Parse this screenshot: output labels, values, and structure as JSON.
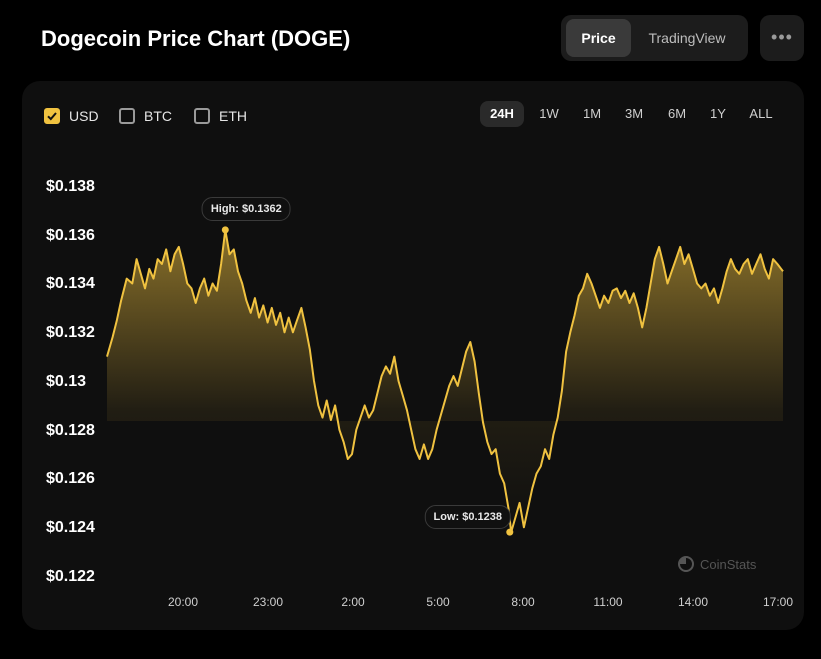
{
  "header": {
    "title": "Dogecoin Price Chart (DOGE)",
    "view_tabs": [
      {
        "label": "Price",
        "active": true
      },
      {
        "label": "TradingView",
        "active": false
      }
    ],
    "more_label": "•••"
  },
  "currencies": [
    {
      "label": "USD",
      "checked": true
    },
    {
      "label": "BTC",
      "checked": false
    },
    {
      "label": "ETH",
      "checked": false
    }
  ],
  "ranges": [
    {
      "label": "24H",
      "active": true
    },
    {
      "label": "1W",
      "active": false
    },
    {
      "label": "1M",
      "active": false
    },
    {
      "label": "3M",
      "active": false
    },
    {
      "label": "6M",
      "active": false
    },
    {
      "label": "1Y",
      "active": false
    },
    {
      "label": "ALL",
      "active": false
    }
  ],
  "watermark": "CoinStats",
  "colors": {
    "accent": "#f0c240",
    "background": "#000000",
    "card": "#0f0f0f"
  },
  "chart_data": {
    "type": "area",
    "title": "Dogecoin Price Chart (DOGE)",
    "currency": "USD",
    "ylim": [
      0.122,
      0.138
    ],
    "y_ticks": [
      "$0.138",
      "$0.136",
      "$0.134",
      "$0.132",
      "$0.13",
      "$0.128",
      "$0.126",
      "$0.124",
      "$0.122"
    ],
    "y_tick_values": [
      0.138,
      0.136,
      0.134,
      0.132,
      0.13,
      0.128,
      0.126,
      0.124,
      0.122
    ],
    "x_ticks": [
      "20:00",
      "23:00",
      "2:00",
      "5:00",
      "8:00",
      "11:00",
      "14:00",
      "17:00"
    ],
    "x_tick_hours": [
      3,
      6,
      9,
      12,
      15,
      18,
      21,
      24
    ],
    "xlim_hours": [
      0,
      24
    ],
    "high": {
      "label": "High: $0.1362",
      "value": 0.1362,
      "hour": 4.2
    },
    "low": {
      "label": "Low: $0.1238",
      "value": 0.1238,
      "hour": 14.3
    },
    "series": [
      {
        "name": "DOGE/USD",
        "points": [
          [
            0,
            0.131
          ],
          [
            0.2,
            0.1318
          ],
          [
            0.35,
            0.1325
          ],
          [
            0.5,
            0.1333
          ],
          [
            0.7,
            0.1342
          ],
          [
            0.9,
            0.134
          ],
          [
            1.05,
            0.135
          ],
          [
            1.2,
            0.1344
          ],
          [
            1.35,
            0.1338
          ],
          [
            1.5,
            0.1346
          ],
          [
            1.65,
            0.1342
          ],
          [
            1.8,
            0.135
          ],
          [
            1.95,
            0.1348
          ],
          [
            2.1,
            0.1354
          ],
          [
            2.25,
            0.1345
          ],
          [
            2.4,
            0.1352
          ],
          [
            2.55,
            0.1355
          ],
          [
            2.7,
            0.1348
          ],
          [
            2.85,
            0.134
          ],
          [
            3.0,
            0.1338
          ],
          [
            3.15,
            0.1332
          ],
          [
            3.3,
            0.1338
          ],
          [
            3.45,
            0.1342
          ],
          [
            3.6,
            0.1335
          ],
          [
            3.75,
            0.134
          ],
          [
            3.9,
            0.1337
          ],
          [
            4.05,
            0.1348
          ],
          [
            4.2,
            0.1362
          ],
          [
            4.35,
            0.1352
          ],
          [
            4.5,
            0.1354
          ],
          [
            4.65,
            0.1345
          ],
          [
            4.8,
            0.134
          ],
          [
            4.95,
            0.1333
          ],
          [
            5.1,
            0.1328
          ],
          [
            5.25,
            0.1334
          ],
          [
            5.4,
            0.1326
          ],
          [
            5.55,
            0.1331
          ],
          [
            5.7,
            0.1324
          ],
          [
            5.85,
            0.133
          ],
          [
            6.0,
            0.1323
          ],
          [
            6.15,
            0.1328
          ],
          [
            6.3,
            0.132
          ],
          [
            6.45,
            0.1326
          ],
          [
            6.6,
            0.132
          ],
          [
            6.75,
            0.1325
          ],
          [
            6.9,
            0.133
          ],
          [
            7.05,
            0.1322
          ],
          [
            7.2,
            0.1313
          ],
          [
            7.35,
            0.13
          ],
          [
            7.5,
            0.129
          ],
          [
            7.65,
            0.1285
          ],
          [
            7.8,
            0.1292
          ],
          [
            7.95,
            0.1284
          ],
          [
            8.1,
            0.129
          ],
          [
            8.25,
            0.128
          ],
          [
            8.4,
            0.1275
          ],
          [
            8.55,
            0.1268
          ],
          [
            8.7,
            0.127
          ],
          [
            8.85,
            0.128
          ],
          [
            9.0,
            0.1285
          ],
          [
            9.15,
            0.129
          ],
          [
            9.3,
            0.1285
          ],
          [
            9.45,
            0.1288
          ],
          [
            9.6,
            0.1295
          ],
          [
            9.75,
            0.1302
          ],
          [
            9.9,
            0.1306
          ],
          [
            10.05,
            0.1303
          ],
          [
            10.2,
            0.131
          ],
          [
            10.35,
            0.13
          ],
          [
            10.5,
            0.1294
          ],
          [
            10.65,
            0.1288
          ],
          [
            10.8,
            0.128
          ],
          [
            10.95,
            0.1272
          ],
          [
            11.1,
            0.1268
          ],
          [
            11.25,
            0.1274
          ],
          [
            11.4,
            0.1268
          ],
          [
            11.55,
            0.1272
          ],
          [
            11.7,
            0.128
          ],
          [
            11.85,
            0.1286
          ],
          [
            12.0,
            0.1292
          ],
          [
            12.15,
            0.1298
          ],
          [
            12.3,
            0.1302
          ],
          [
            12.45,
            0.1298
          ],
          [
            12.6,
            0.1305
          ],
          [
            12.75,
            0.1312
          ],
          [
            12.9,
            0.1316
          ],
          [
            13.05,
            0.1308
          ],
          [
            13.2,
            0.1295
          ],
          [
            13.35,
            0.1283
          ],
          [
            13.5,
            0.1275
          ],
          [
            13.65,
            0.127
          ],
          [
            13.8,
            0.1272
          ],
          [
            13.95,
            0.1262
          ],
          [
            14.1,
            0.1258
          ],
          [
            14.25,
            0.1248
          ],
          [
            14.35,
            0.1238
          ],
          [
            14.5,
            0.1244
          ],
          [
            14.65,
            0.125
          ],
          [
            14.8,
            0.124
          ],
          [
            14.95,
            0.1248
          ],
          [
            15.1,
            0.1256
          ],
          [
            15.25,
            0.1262
          ],
          [
            15.4,
            0.1265
          ],
          [
            15.55,
            0.1272
          ],
          [
            15.7,
            0.1268
          ],
          [
            15.85,
            0.1278
          ],
          [
            16.0,
            0.1285
          ],
          [
            16.15,
            0.1296
          ],
          [
            16.3,
            0.1312
          ],
          [
            16.45,
            0.132
          ],
          [
            16.6,
            0.1327
          ],
          [
            16.75,
            0.1335
          ],
          [
            16.9,
            0.1338
          ],
          [
            17.05,
            0.1344
          ],
          [
            17.2,
            0.134
          ],
          [
            17.35,
            0.1335
          ],
          [
            17.5,
            0.133
          ],
          [
            17.65,
            0.1335
          ],
          [
            17.8,
            0.1332
          ],
          [
            17.95,
            0.1337
          ],
          [
            18.1,
            0.1338
          ],
          [
            18.25,
            0.1334
          ],
          [
            18.4,
            0.1337
          ],
          [
            18.55,
            0.1332
          ],
          [
            18.7,
            0.1336
          ],
          [
            18.85,
            0.133
          ],
          [
            19.0,
            0.1322
          ],
          [
            19.15,
            0.133
          ],
          [
            19.3,
            0.134
          ],
          [
            19.45,
            0.135
          ],
          [
            19.6,
            0.1355
          ],
          [
            19.75,
            0.1348
          ],
          [
            19.9,
            0.134
          ],
          [
            20.05,
            0.1345
          ],
          [
            20.2,
            0.135
          ],
          [
            20.35,
            0.1355
          ],
          [
            20.5,
            0.1348
          ],
          [
            20.65,
            0.1352
          ],
          [
            20.8,
            0.1346
          ],
          [
            20.95,
            0.134
          ],
          [
            21.1,
            0.1338
          ],
          [
            21.25,
            0.134
          ],
          [
            21.4,
            0.1335
          ],
          [
            21.55,
            0.1338
          ],
          [
            21.7,
            0.1332
          ],
          [
            21.85,
            0.1338
          ],
          [
            22.0,
            0.1345
          ],
          [
            22.15,
            0.135
          ],
          [
            22.3,
            0.1346
          ],
          [
            22.45,
            0.1344
          ],
          [
            22.6,
            0.1348
          ],
          [
            22.75,
            0.135
          ],
          [
            22.9,
            0.1344
          ],
          [
            23.05,
            0.1348
          ],
          [
            23.2,
            0.1352
          ],
          [
            23.35,
            0.1346
          ],
          [
            23.5,
            0.1342
          ],
          [
            23.65,
            0.135
          ],
          [
            23.8,
            0.1348
          ],
          [
            24.0,
            0.1345
          ]
        ]
      }
    ]
  }
}
